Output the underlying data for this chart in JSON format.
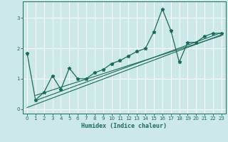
{
  "title": "",
  "xlabel": "Humidex (Indice chaleur)",
  "bg_color": "#cce8e8",
  "line_color": "#1a6b5a",
  "grid_color": "#ffffff",
  "xlim": [
    -0.5,
    23.5
  ],
  "ylim": [
    -0.15,
    3.55
  ],
  "x_data": [
    0,
    1,
    2,
    3,
    4,
    5,
    6,
    7,
    8,
    9,
    10,
    11,
    12,
    13,
    14,
    15,
    16,
    17,
    18,
    19,
    20,
    21,
    22,
    23
  ],
  "y_data": [
    1.85,
    0.3,
    0.55,
    1.1,
    0.65,
    1.35,
    1.0,
    1.0,
    1.2,
    1.3,
    1.5,
    1.6,
    1.75,
    1.9,
    2.0,
    2.55,
    3.3,
    2.6,
    1.55,
    2.2,
    2.2,
    2.4,
    2.5,
    2.5
  ],
  "trend1_x": [
    0,
    23
  ],
  "trend1_y": [
    0.05,
    2.45
  ],
  "trend2_x": [
    1,
    23
  ],
  "trend2_y": [
    0.28,
    2.52
  ],
  "trend3_x": [
    1,
    23
  ],
  "trend3_y": [
    0.45,
    2.42
  ],
  "yticks": [
    0,
    1,
    2,
    3
  ]
}
